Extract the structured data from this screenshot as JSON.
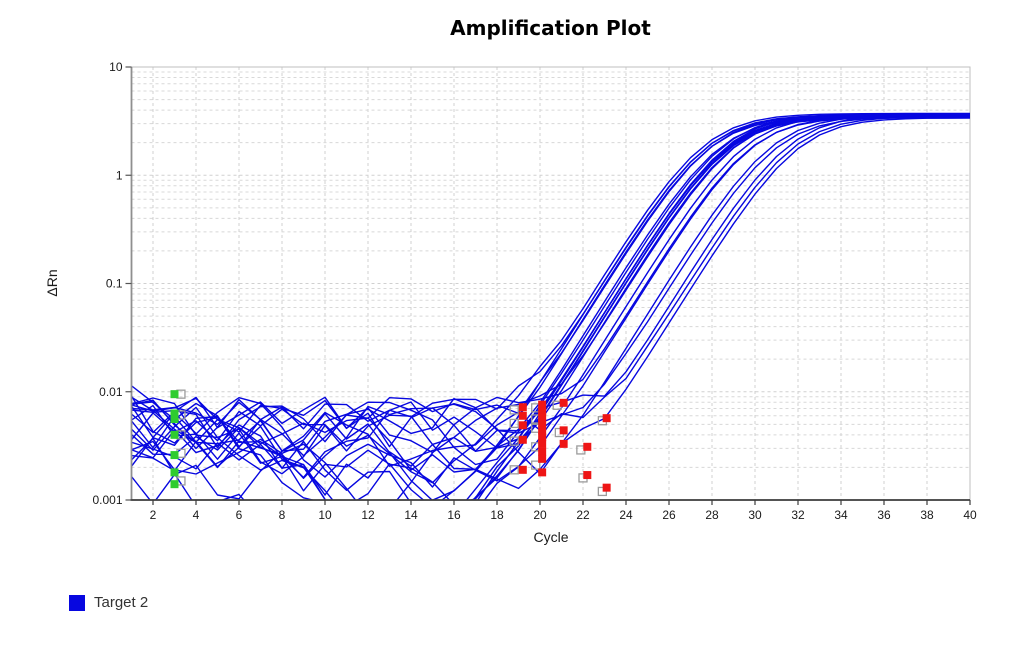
{
  "chart_data": {
    "type": "line",
    "title": "Amplification Plot",
    "xlabel": "Cycle",
    "ylabel": "ΔRn",
    "x_range": [
      1,
      40
    ],
    "x_ticks": [
      2,
      4,
      6,
      8,
      10,
      12,
      14,
      16,
      18,
      20,
      22,
      24,
      26,
      28,
      30,
      32,
      34,
      36,
      38,
      40
    ],
    "y_scale": "log",
    "y_range": [
      0.001,
      10
    ],
    "y_ticks": [
      "10",
      "1",
      "0.1",
      "0.01",
      "0.001"
    ],
    "y_tick_values": [
      10,
      1,
      0.1,
      0.01,
      0.001
    ],
    "grid": true,
    "legend": [
      {
        "label": "Target 2",
        "color": "#0707e0"
      }
    ],
    "colors": {
      "curve": "#0707e0",
      "green_marker": "#2fcc2f",
      "red_marker": "#ee1515",
      "gray_marker": "#9c9c9c",
      "grid_line": "#d0d0d0",
      "plot_border": "#bfbfbf",
      "axis_left": "#8f8f8f",
      "axis_bottom": "#3c3c3c",
      "tick_text": "#1a1a1a"
    },
    "plateau_level_approx": 3.5,
    "baseline_noise_range": [
      0.001,
      0.01
    ],
    "curves": [
      {
        "ct": 19.0,
        "plateau": 3.72,
        "seed": 11
      },
      {
        "ct": 19.1,
        "plateau": 3.55,
        "seed": 12
      },
      {
        "ct": 19.15,
        "plateau": 3.62,
        "seed": 13
      },
      {
        "ct": 19.2,
        "plateau": 3.45,
        "seed": 14
      },
      {
        "ct": 19.3,
        "plateau": 3.58,
        "seed": 15
      },
      {
        "ct": 19.7,
        "plateau": 3.5,
        "seed": 16
      },
      {
        "ct": 19.9,
        "plateau": 3.66,
        "seed": 17
      },
      {
        "ct": 20.0,
        "plateau": 3.42,
        "seed": 18
      },
      {
        "ct": 20.05,
        "plateau": 3.55,
        "seed": 19
      },
      {
        "ct": 20.1,
        "plateau": 3.7,
        "seed": 20
      },
      {
        "ct": 20.1,
        "plateau": 3.38,
        "seed": 21
      },
      {
        "ct": 20.15,
        "plateau": 3.52,
        "seed": 22
      },
      {
        "ct": 20.2,
        "plateau": 3.6,
        "seed": 23
      },
      {
        "ct": 20.3,
        "plateau": 3.47,
        "seed": 24
      },
      {
        "ct": 20.4,
        "plateau": 3.56,
        "seed": 25
      },
      {
        "ct": 20.9,
        "plateau": 3.64,
        "seed": 26
      },
      {
        "ct": 21.1,
        "plateau": 3.44,
        "seed": 27
      },
      {
        "ct": 21.2,
        "plateau": 3.52,
        "seed": 28
      },
      {
        "ct": 22.1,
        "plateau": 3.58,
        "seed": 29
      },
      {
        "ct": 22.3,
        "plateau": 3.46,
        "seed": 30
      },
      {
        "ct": 22.9,
        "plateau": 3.65,
        "seed": 31
      },
      {
        "ct": 23.1,
        "plateau": 3.5,
        "seed": 32
      },
      {
        "ct": 23.3,
        "plateau": 3.4,
        "seed": 33
      }
    ],
    "markers": {
      "green_points": [
        [
          3,
          0.0095
        ],
        [
          3,
          0.0063
        ],
        [
          3,
          0.0056
        ],
        [
          3,
          0.004
        ],
        [
          3,
          0.0026
        ],
        [
          3,
          0.0018
        ],
        [
          3,
          0.0014
        ]
      ],
      "red_points": [
        [
          19.2,
          0.0072
        ],
        [
          19.2,
          0.006
        ],
        [
          19.2,
          0.0049
        ],
        [
          19.2,
          0.0036
        ],
        [
          19.2,
          0.0019
        ],
        [
          20.1,
          0.0076
        ],
        [
          20.1,
          0.0066
        ],
        [
          20.1,
          0.0058
        ],
        [
          20.1,
          0.0051
        ],
        [
          20.1,
          0.0044
        ],
        [
          20.1,
          0.0038
        ],
        [
          20.1,
          0.0033
        ],
        [
          20.1,
          0.0028
        ],
        [
          20.1,
          0.0024
        ],
        [
          20.1,
          0.0018
        ],
        [
          21.1,
          0.0079
        ],
        [
          21.1,
          0.0044
        ],
        [
          21.1,
          0.0033
        ],
        [
          22.2,
          0.0031
        ],
        [
          22.2,
          0.0017
        ],
        [
          23.1,
          0.0057
        ],
        [
          23.1,
          0.0013
        ]
      ],
      "gray_points": [
        [
          3.3,
          0.0095
        ],
        [
          3.3,
          0.0061
        ],
        [
          3.3,
          0.004
        ],
        [
          3.3,
          0.0027
        ],
        [
          3.3,
          0.0015
        ],
        [
          18.8,
          0.0068
        ],
        [
          18.8,
          0.0051
        ],
        [
          18.8,
          0.0035
        ],
        [
          18.8,
          0.0019
        ],
        [
          19.8,
          0.0071
        ],
        [
          19.8,
          0.0056
        ],
        [
          19.8,
          0.0046
        ],
        [
          19.8,
          0.0031
        ],
        [
          19.8,
          0.0021
        ],
        [
          20.8,
          0.0075
        ],
        [
          20.9,
          0.0042
        ],
        [
          21.9,
          0.0029
        ],
        [
          22.0,
          0.0016
        ],
        [
          22.9,
          0.0054
        ],
        [
          22.9,
          0.0012
        ]
      ]
    }
  }
}
